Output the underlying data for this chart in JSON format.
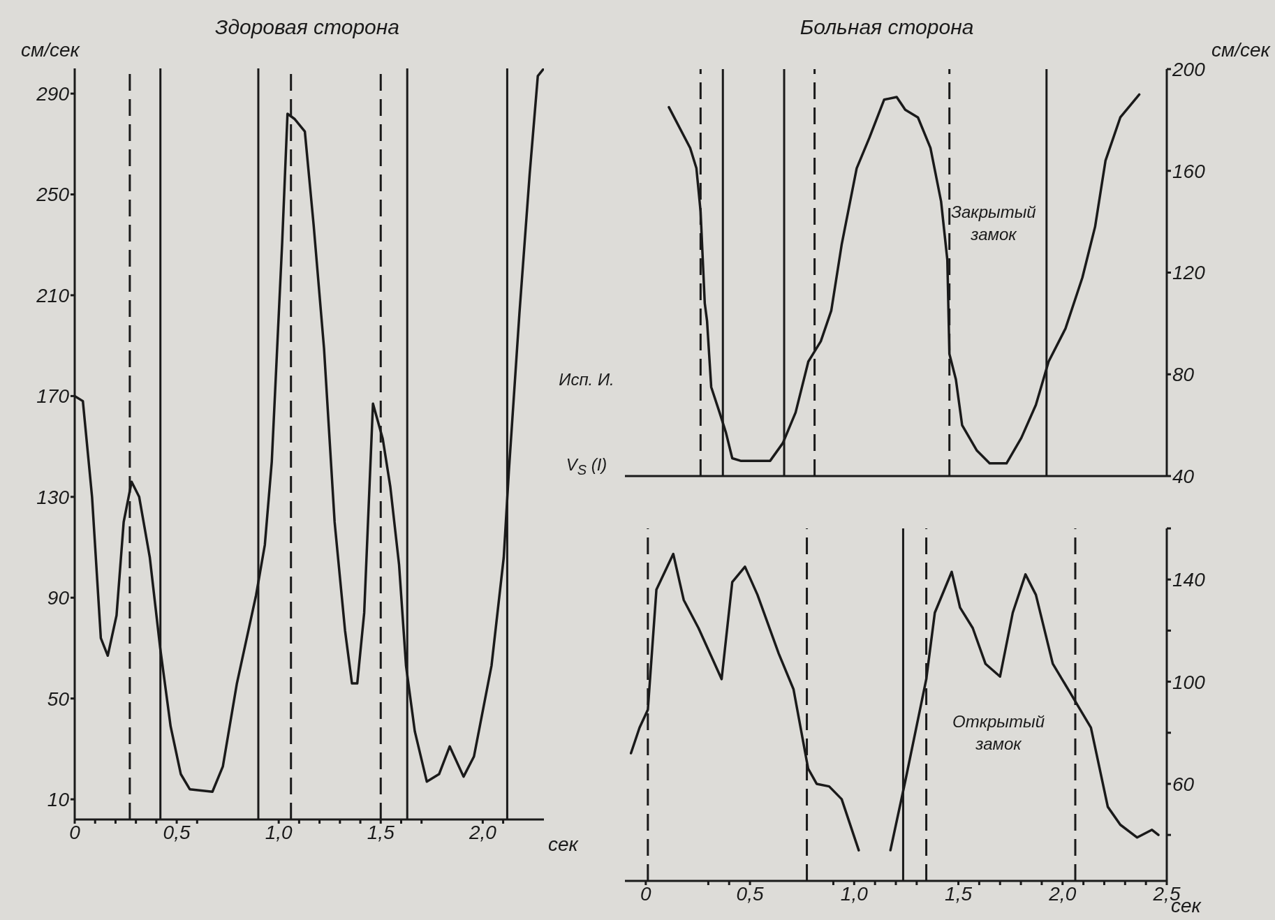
{
  "chart_data": [
    {
      "type": "line",
      "title": "Здоровая сторона",
      "ylabel": "см/сек",
      "xlabel": "сек",
      "x": [
        0,
        0.04,
        0.085,
        0.128,
        0.162,
        0.205,
        0.24,
        0.279,
        0.316,
        0.368,
        0.419,
        0.47,
        0.52,
        0.564,
        0.675,
        0.726,
        0.795,
        0.889,
        0.932,
        0.966,
        1.017,
        1.043,
        1.077,
        1.128,
        1.171,
        1.222,
        1.274,
        1.325,
        1.359,
        1.385,
        1.419,
        1.462,
        1.51,
        1.547,
        1.59,
        1.624,
        1.667,
        1.726,
        1.786,
        1.838,
        1.906,
        1.957,
        2.043,
        2.103,
        2.128,
        2.18,
        2.23,
        2.27,
        2.3
      ],
      "series": [
        {
          "color": "#1a1a1a",
          "values": [
            170,
            168,
            130,
            74,
            67,
            83,
            120,
            136,
            130,
            106,
            70,
            39,
            20,
            14,
            13,
            23,
            56,
            91,
            111,
            144,
            231,
            282,
            280,
            275,
            238,
            189,
            120,
            77,
            56,
            56,
            84,
            167,
            153,
            134,
            103,
            63,
            37,
            17,
            20,
            31,
            19,
            27,
            63,
            106,
            140,
            203,
            258,
            297,
            300
          ]
        }
      ],
      "xlim": [
        0,
        2.3
      ],
      "xticks": [
        0,
        {
          "value": 0.1,
          "label": null
        },
        {
          "value": 0.2,
          "label": null
        },
        {
          "value": 0.3,
          "label": null
        },
        {
          "value": 0.4,
          "label": null
        },
        {
          "value": 0.5,
          "label": "0,5"
        },
        {
          "value": 0.6,
          "label": null
        },
        {
          "value": 1,
          "label": "1,0"
        },
        {
          "value": 1.1,
          "label": null
        },
        {
          "value": 1.2,
          "label": null
        },
        {
          "value": 1.3,
          "label": null
        },
        {
          "value": 1.4,
          "label": null
        },
        {
          "value": 1.5,
          "label": "1,5"
        },
        {
          "value": 1.6,
          "label": null
        },
        {
          "value": 1.7,
          "label": null
        },
        {
          "value": 2,
          "label": "2,0"
        },
        {
          "value": 2.1,
          "label": null
        }
      ],
      "ylim": [
        2,
        300
      ],
      "yticks": [
        10,
        50,
        90,
        130,
        170,
        210,
        250,
        290
      ],
      "ref_lines": [
        {
          "axis": "x",
          "value": 0.27,
          "line_style": "dashed",
          "color": "#1a1a1a"
        },
        {
          "axis": "x",
          "value": 0.42,
          "line_style": "solid",
          "color": "#1a1a1a"
        },
        {
          "axis": "x",
          "value": 0.9,
          "line_style": "solid",
          "color": "#1a1a1a"
        },
        {
          "axis": "x",
          "value": 1.06,
          "line_style": "dashed",
          "color": "#1a1a1a"
        },
        {
          "axis": "x",
          "value": 1.5,
          "line_style": "dashed",
          "color": "#1a1a1a"
        },
        {
          "axis": "x",
          "value": 1.63,
          "line_style": "solid",
          "color": "#1a1a1a"
        },
        {
          "axis": "x",
          "value": 2.12,
          "line_style": "solid",
          "color": "#1a1a1a"
        }
      ]
    },
    {
      "type": "line",
      "title": "Больная сторона",
      "y2label": "см/сек",
      "tick_labels": "y",
      "annotations": [
        "Закрытый замок",
        "Исп. И.",
        "V$_{S}$ (I)"
      ],
      "x": [
        0.111,
        0.213,
        0.243,
        0.263,
        0.283,
        0.294,
        0.314,
        0.354,
        0.385,
        0.415,
        0.455,
        0.597,
        0.658,
        0.719,
        0.78,
        0.84,
        0.89,
        0.94,
        1.012,
        1.073,
        1.144,
        1.204,
        1.245,
        1.306,
        1.366,
        1.417,
        1.447,
        1.457,
        1.488,
        1.518,
        1.589,
        1.65,
        1.731,
        1.802,
        1.872,
        1.933,
        2.014,
        2.095,
        2.156,
        2.206,
        2.277,
        2.368
      ],
      "series": [
        {
          "color": "#1a1a1a",
          "axis": "y2",
          "values": [
            185,
            169,
            161,
            144,
            108,
            101,
            75,
            65,
            57,
            47,
            46,
            46,
            53,
            65,
            85,
            93,
            105,
            131,
            161,
            173,
            188,
            189,
            184,
            181,
            169,
            148,
            125,
            88,
            78,
            60,
            50,
            45,
            45,
            55,
            68,
            85,
            98,
            118,
            138,
            164,
            181,
            190
          ]
        }
      ],
      "xlim": [
        -0.1,
        2.5
      ],
      "y2lim": [
        40,
        200
      ],
      "y2ticks": [
        40,
        80,
        120,
        160,
        200
      ],
      "ref_lines": [
        {
          "axis": "x",
          "value": 0.263,
          "line_style": "dashed",
          "color": "#1a1a1a"
        },
        {
          "axis": "x",
          "value": 0.37,
          "line_style": "solid",
          "color": "#1a1a1a"
        },
        {
          "axis": "x",
          "value": 0.664,
          "line_style": "solid",
          "color": "#1a1a1a"
        },
        {
          "axis": "x",
          "value": 0.81,
          "line_style": "dashed",
          "color": "#1a1a1a"
        },
        {
          "axis": "x",
          "value": 1.457,
          "line_style": "dashed",
          "color": "#1a1a1a"
        },
        {
          "axis": "x",
          "value": 1.923,
          "line_style": "solid",
          "color": "#1a1a1a"
        }
      ]
    },
    {
      "type": "line",
      "xlabel": "сек",
      "annotations": [
        "Открытый замок"
      ],
      "x": [
        -0.071,
        -0.03,
        0.01,
        0.051,
        0.132,
        0.182,
        0.253,
        0.364,
        0.415,
        0.476,
        0.536,
        0.638,
        0.709,
        0.779,
        0.82,
        0.88,
        0.94,
        1.022,
        1.1,
        1.174,
        1.245,
        1.346,
        1.387,
        1.468,
        1.508,
        1.569,
        1.63,
        1.7,
        1.761,
        1.822,
        1.872,
        1.953,
        2.034,
        2.136,
        2.217,
        2.277,
        2.358,
        2.429,
        2.46
      ],
      "series": [
        {
          "color": "#1a1a1a",
          "axis": "y2",
          "values": [
            72,
            82,
            89,
            136,
            150,
            132,
            121,
            101,
            139,
            145,
            134,
            111,
            97,
            66,
            60,
            59,
            54,
            34,
            null,
            34,
            61,
            101,
            127,
            143,
            129,
            121,
            107,
            102,
            127,
            142,
            134,
            107,
            96,
            82,
            51,
            44,
            39,
            42,
            40
          ]
        }
      ],
      "xlim": [
        -0.1,
        2.5
      ],
      "xticks": [
        0,
        {
          "value": 0.3,
          "label": null
        },
        {
          "value": 0.4,
          "label": null
        },
        {
          "value": 0.5,
          "label": "0,5"
        },
        {
          "value": 0.9,
          "label": null
        },
        {
          "value": 1,
          "label": "1,0"
        },
        {
          "value": 1.1,
          "label": null
        },
        {
          "value": 1.2,
          "label": null
        },
        {
          "value": 1.3,
          "label": null
        },
        {
          "value": 1.5,
          "label": "1,5"
        },
        {
          "value": 1.6,
          "label": null
        },
        {
          "value": 1.7,
          "label": null
        },
        {
          "value": 1.8,
          "label": null
        },
        {
          "value": 1.9,
          "label": null
        },
        {
          "value": 2,
          "label": "2,0"
        },
        {
          "value": 2.1,
          "label": null
        },
        {
          "value": 2.2,
          "label": null
        },
        {
          "value": 2.3,
          "label": null
        },
        {
          "value": 2.4,
          "label": null
        },
        {
          "value": 2.5,
          "label": "2,5"
        }
      ],
      "y2lim": [
        22,
        160
      ],
      "y2ticks": [
        {
          "value": 40,
          "label": null
        },
        60,
        {
          "value": 80,
          "label": null
        },
        100,
        {
          "value": 120,
          "label": null
        },
        140,
        {
          "value": 160,
          "label": null
        }
      ],
      "ref_lines": [
        {
          "axis": "x",
          "value": 0.01,
          "line_style": "dashed",
          "color": "#1a1a1a"
        },
        {
          "axis": "x",
          "value": 0.773,
          "line_style": "dashed",
          "color": "#1a1a1a"
        },
        {
          "axis": "x",
          "value": 1.235,
          "line_style": "solid",
          "color": "#1a1a1a"
        },
        {
          "axis": "x",
          "value": 1.346,
          "line_style": "dashed",
          "color": "#1a1a1a"
        },
        {
          "axis": "x",
          "value": 2.061,
          "line_style": "dashed",
          "color": "#1a1a1a"
        }
      ]
    }
  ]
}
